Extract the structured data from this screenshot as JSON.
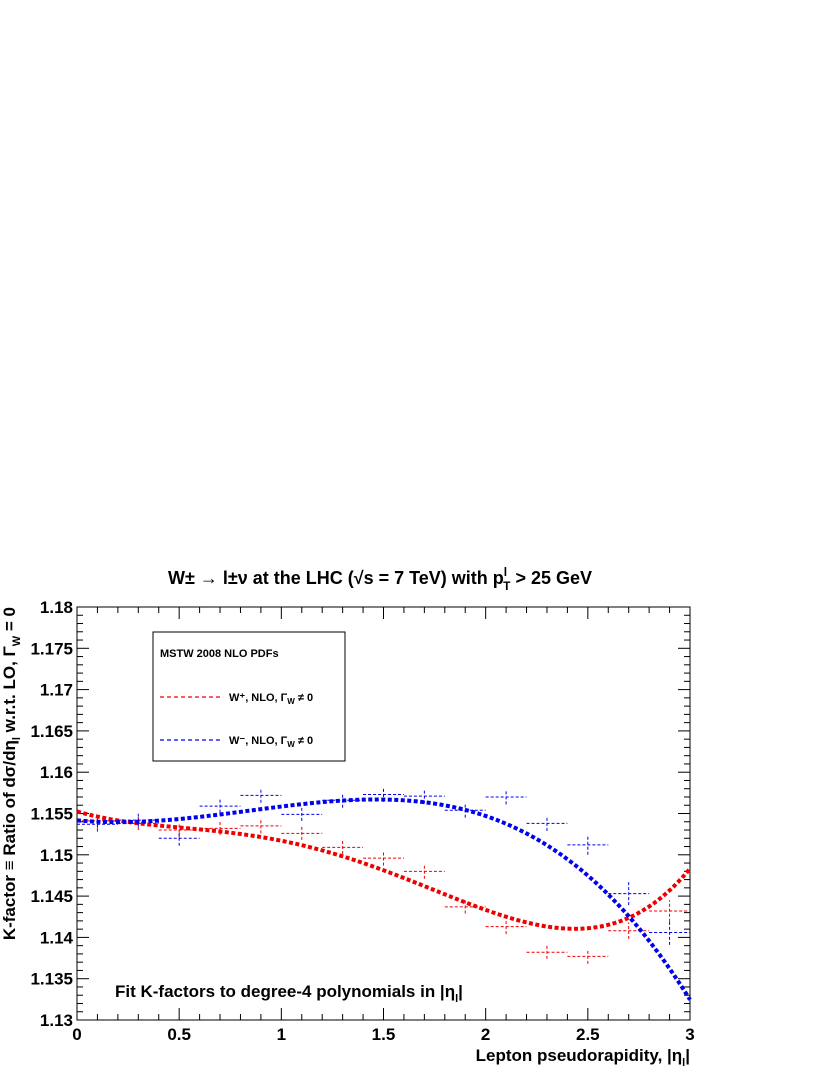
{
  "chart_data": {
    "type": "scatter",
    "title": {
      "main": "W± → l±ν at the LHC (√s = 7 TeV) with p",
      "sup": "l",
      "sub": "T",
      "suffix": " > 25 GeV"
    },
    "xlabel": {
      "main": "Lepton pseudorapidity, |η",
      "sub": "l",
      "suffix": "|"
    },
    "ylabel": {
      "pre": "K-factor ≡ Ratio of dσ/dη",
      "sub1": "l",
      "mid": " w.r.t. LO, Γ",
      "sub2": "W",
      "post": " = 0"
    },
    "xlim": [
      0,
      3
    ],
    "ylim": [
      1.13,
      1.18
    ],
    "x_ticks": [
      0,
      0.5,
      1,
      1.5,
      2,
      2.5,
      3
    ],
    "x_tick_labels": [
      "0",
      "0.5",
      "1",
      "1.5",
      "2",
      "2.5",
      "3"
    ],
    "y_ticks": [
      1.13,
      1.135,
      1.14,
      1.145,
      1.15,
      1.155,
      1.16,
      1.165,
      1.17,
      1.175,
      1.18
    ],
    "y_tick_labels": [
      "1.13",
      "1.135",
      "1.14",
      "1.145",
      "1.15",
      "1.155",
      "1.16",
      "1.165",
      "1.17",
      "1.175",
      "1.18"
    ],
    "x_bin_halfwidth": 0.1,
    "legend": {
      "header": "MSTW 2008 NLO PDFs",
      "entries": [
        {
          "label": "W⁺, NLO, Γ",
          "sub": "W",
          "suffix": " ≠ 0",
          "color": "#ee0000"
        },
        {
          "label": "W⁻, NLO, Γ",
          "sub": "W",
          "suffix": " ≠ 0",
          "color": "#0000ee"
        }
      ],
      "placement": "top-left"
    },
    "annotation": {
      "main": "Fit K-factors to degree-4 polynomials in |η",
      "sub": "l",
      "suffix": "|"
    },
    "series": [
      {
        "color": "#ee0000",
        "points": [
          {
            "x": 0.1,
            "y": 1.1541,
            "err": 0.0009
          },
          {
            "x": 0.3,
            "y": 1.1538,
            "err": 0.0008
          },
          {
            "x": 0.5,
            "y": 1.153,
            "err": 0.0009
          },
          {
            "x": 0.7,
            "y": 1.1532,
            "err": 0.0008
          },
          {
            "x": 0.9,
            "y": 1.1535,
            "err": 0.0009
          },
          {
            "x": 1.1,
            "y": 1.1526,
            "err": 0.0008
          },
          {
            "x": 1.3,
            "y": 1.1509,
            "err": 0.0008
          },
          {
            "x": 1.5,
            "y": 1.1496,
            "err": 0.0009
          },
          {
            "x": 1.7,
            "y": 1.148,
            "err": 0.0009
          },
          {
            "x": 1.9,
            "y": 1.1437,
            "err": 0.0008
          },
          {
            "x": 2.1,
            "y": 1.1413,
            "err": 0.0009
          },
          {
            "x": 2.3,
            "y": 1.1382,
            "err": 0.0008
          },
          {
            "x": 2.5,
            "y": 1.1377,
            "err": 0.0009
          },
          {
            "x": 2.7,
            "y": 1.1408,
            "err": 0.001
          },
          {
            "x": 2.9,
            "y": 1.1432,
            "err": 0.0013
          }
        ],
        "fit": [
          1.155255,
          -0.0073,
          0.0109,
          -0.00919,
          0.002037
        ]
      },
      {
        "color": "#0000ee",
        "points": [
          {
            "x": 0.1,
            "y": 1.1537,
            "err": 0.0009
          },
          {
            "x": 0.3,
            "y": 1.1542,
            "err": 0.0008
          },
          {
            "x": 0.5,
            "y": 1.152,
            "err": 0.0009
          },
          {
            "x": 0.7,
            "y": 1.1559,
            "err": 0.0008
          },
          {
            "x": 0.9,
            "y": 1.1572,
            "err": 0.0009
          },
          {
            "x": 1.1,
            "y": 1.1549,
            "err": 0.0008
          },
          {
            "x": 1.3,
            "y": 1.1566,
            "err": 0.0009
          },
          {
            "x": 1.5,
            "y": 1.1573,
            "err": 0.0009
          },
          {
            "x": 1.7,
            "y": 1.1571,
            "err": 0.0009
          },
          {
            "x": 1.9,
            "y": 1.1554,
            "err": 0.0009
          },
          {
            "x": 2.1,
            "y": 1.157,
            "err": 0.0009
          },
          {
            "x": 2.3,
            "y": 1.1538,
            "err": 0.0009
          },
          {
            "x": 2.5,
            "y": 1.1512,
            "err": 0.0012
          },
          {
            "x": 2.7,
            "y": 1.1453,
            "err": 0.0014
          },
          {
            "x": 2.9,
            "y": 1.1406,
            "err": 0.0015
          }
        ],
        "fit": [
          1.15417,
          -0.00225,
          0.00633,
          -0.00228,
          -0.000128
        ]
      }
    ]
  }
}
